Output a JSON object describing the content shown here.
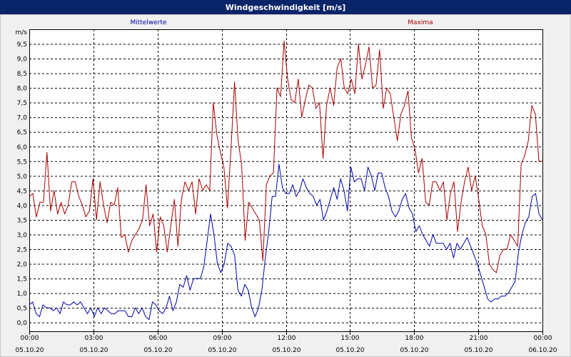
{
  "window": {
    "title": "Windgeschwindigkeit [m/s]"
  },
  "chart_data": {
    "type": "line",
    "title": "Windgeschwindigkeit [m/s]",
    "ylabel": "m/s",
    "ylim": [
      -0.3,
      10.0
    ],
    "xlim_hours": [
      0,
      24
    ],
    "grid": true,
    "yticks": [
      "0,0",
      "0,5",
      "1,0",
      "1,5",
      "2,0",
      "2,5",
      "3,0",
      "3,5",
      "4,0",
      "4,5",
      "5,0",
      "5,5",
      "6,0",
      "6,5",
      "7,0",
      "7,5",
      "8,0",
      "8,5",
      "9,0",
      "9,5"
    ],
    "xticks": [
      {
        "time": "00:00",
        "date": "05.10.20"
      },
      {
        "time": "03:00",
        "date": "05.10.20"
      },
      {
        "time": "06:00",
        "date": "05.10.20"
      },
      {
        "time": "09:00",
        "date": "05.10.20"
      },
      {
        "time": "12:00",
        "date": "05.10.20"
      },
      {
        "time": "15:00",
        "date": "05.10.20"
      },
      {
        "time": "18:00",
        "date": "05.10.20"
      },
      {
        "time": "21:00",
        "date": "05.10.20"
      },
      {
        "time": "00:00",
        "date": "06.10.20"
      }
    ],
    "series": [
      {
        "name": "Mittelwerte",
        "color": "#0000aa",
        "values": [
          0.6,
          0.7,
          0.3,
          0.2,
          0.6,
          0.5,
          0.5,
          0.4,
          0.5,
          0.3,
          0.7,
          0.6,
          0.6,
          0.7,
          0.6,
          0.7,
          0.5,
          0.3,
          0.5,
          0.2,
          0.5,
          0.3,
          0.5,
          0.4,
          0.3,
          0.3,
          0.4,
          0.4,
          0.4,
          0.2,
          0.2,
          0.5,
          0.3,
          0.5,
          0.2,
          0.1,
          0.7,
          0.6,
          0.4,
          0.3,
          0.5,
          0.9,
          0.4,
          0.7,
          1.3,
          1.2,
          1.6,
          1.1,
          1.5,
          1.5,
          1.5,
          1.9,
          2.8,
          3.7,
          3.0,
          2.0,
          1.7,
          2.0,
          2.7,
          2.6,
          2.3,
          1.1,
          0.9,
          1.3,
          1.1,
          0.5,
          0.2,
          0.5,
          1.1,
          2.2,
          3.1,
          4.3,
          4.3,
          5.4,
          4.6,
          4.4,
          4.4,
          4.7,
          4.3,
          4.5,
          4.9,
          4.6,
          4.4,
          4.3,
          4.0,
          4.2,
          3.5,
          3.8,
          4.2,
          4.6,
          4.2,
          4.9,
          4.5,
          3.8,
          5.3,
          4.8,
          4.9,
          4.9,
          4.5,
          5.3,
          5.0,
          4.5,
          5.1,
          5.1,
          4.6,
          4.3,
          3.8,
          3.6,
          3.8,
          4.2,
          4.4,
          3.9,
          3.7,
          3.1,
          3.3,
          3.0,
          2.8,
          2.6,
          3.0,
          2.7,
          2.7,
          2.7,
          2.5,
          2.7,
          2.2,
          2.7,
          2.5,
          2.7,
          2.9,
          2.6,
          2.3,
          2.0,
          1.6,
          1.2,
          0.8,
          0.7,
          0.8,
          0.8,
          0.9,
          0.9,
          1.0,
          1.2,
          1.4,
          2.4,
          3.0,
          3.4,
          3.6,
          4.3,
          4.4,
          3.7,
          3.5
        ]
      },
      {
        "name": "Maxima",
        "color": "#aa0000",
        "values": [
          4.3,
          4.4,
          3.6,
          4.1,
          4.1,
          5.8,
          3.8,
          4.5,
          3.7,
          4.1,
          3.7,
          4.0,
          4.8,
          4.8,
          4.3,
          4.0,
          3.6,
          3.8,
          4.9,
          3.5,
          4.8,
          4.0,
          3.4,
          4.1,
          4.0,
          4.6,
          2.9,
          3.0,
          2.4,
          2.8,
          3.0,
          3.2,
          3.5,
          4.7,
          3.3,
          3.7,
          2.4,
          3.6,
          3.3,
          2.4,
          3.3,
          4.2,
          2.6,
          4.2,
          4.8,
          4.5,
          4.8,
          3.7,
          4.9,
          4.5,
          4.7,
          4.5,
          7.5,
          6.4,
          5.8,
          5.3,
          3.9,
          5.9,
          8.2,
          6.2,
          5.4,
          2.8,
          4.1,
          3.9,
          3.7,
          3.5,
          2.1,
          4.7,
          5.0,
          5.1,
          8.0,
          7.7,
          9.6,
          8.3,
          7.6,
          7.5,
          8.3,
          7.0,
          7.6,
          8.1,
          8.0,
          7.3,
          7.5,
          5.6,
          7.4,
          8.0,
          7.4,
          8.7,
          9.0,
          8.0,
          7.8,
          8.3,
          7.8,
          9.5,
          8.3,
          8.8,
          9.4,
          8.0,
          8.1,
          9.3,
          7.3,
          8.0,
          7.8,
          7.0,
          6.2,
          7.1,
          7.4,
          7.9,
          6.3,
          5.9,
          5.1,
          5.6,
          4.1,
          4.0,
          4.8,
          4.8,
          4.5,
          4.8,
          3.5,
          4.4,
          4.8,
          3.1,
          4.1,
          4.8,
          5.3,
          4.5,
          5.0,
          4.2,
          3.3,
          3.0,
          2.0,
          1.8,
          1.7,
          2.3,
          2.5,
          2.5,
          3.0,
          2.8,
          2.6,
          5.4,
          5.7,
          6.2,
          7.4,
          7.1,
          5.5,
          5.5
        ]
      }
    ]
  }
}
